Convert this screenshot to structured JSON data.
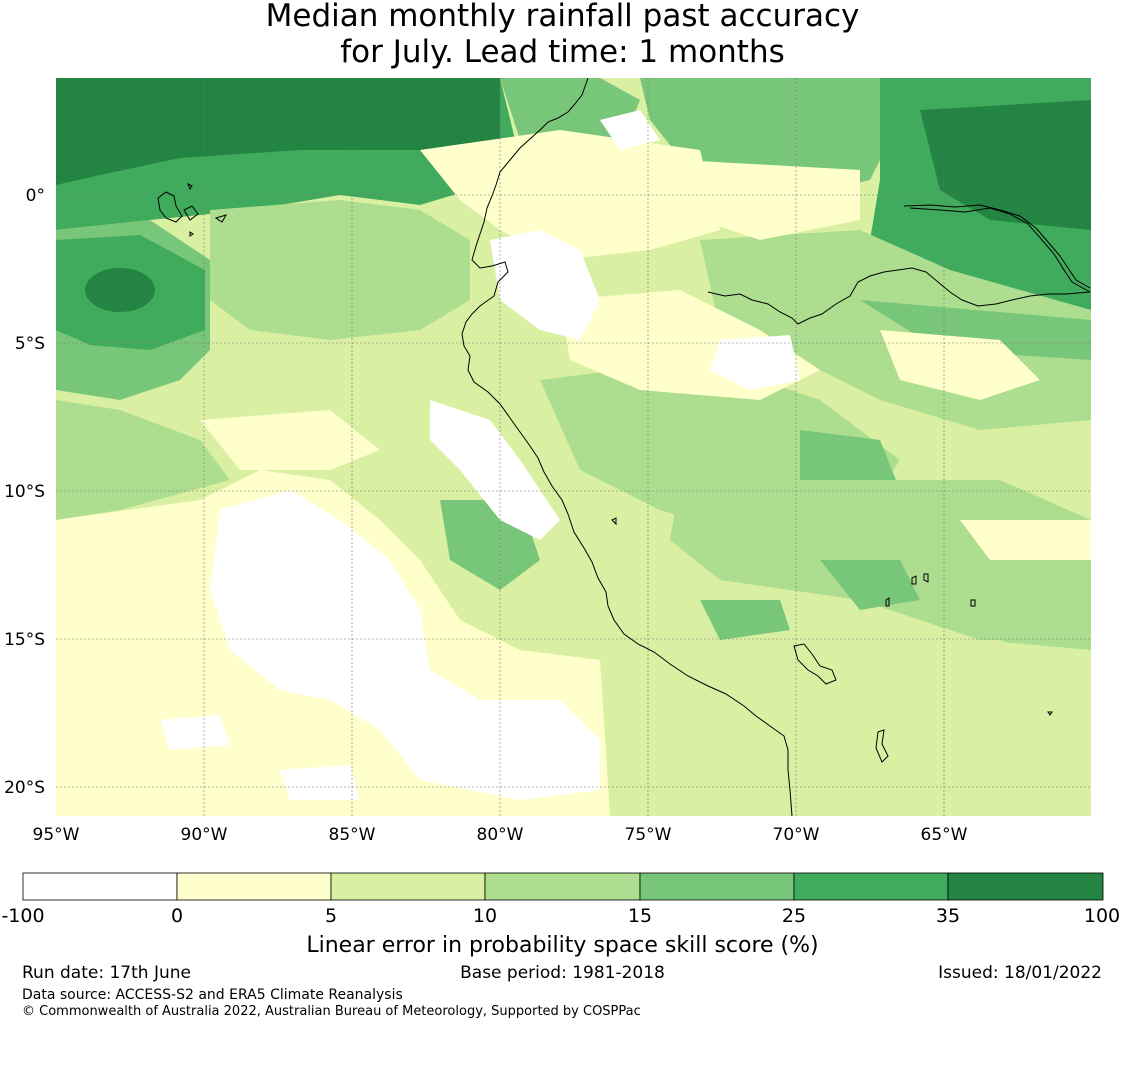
{
  "title": {
    "line1": "Median monthly rainfall past accuracy",
    "line2": "for July. Lead time: 1 months"
  },
  "map": {
    "lon_ticks": [
      "95°W",
      "90°W",
      "85°W",
      "80°W",
      "75°W",
      "70°W",
      "65°W"
    ],
    "lat_ticks": [
      "0°",
      "5°S",
      "10°S",
      "15°S",
      "20°S"
    ],
    "lon_range": [
      -95,
      -60
    ],
    "lat_range": [
      -21,
      4
    ],
    "gridlines": true
  },
  "colorbar": {
    "label": "Linear error in probability space skill score (%)",
    "ticks": [
      "-100",
      "0",
      "5",
      "10",
      "15",
      "25",
      "35",
      "100"
    ],
    "colors": [
      "#ffffff",
      "#ffffcc",
      "#d9f0a3",
      "#addd8e",
      "#78c679",
      "#41ab5d",
      "#238443"
    ]
  },
  "footer": {
    "run_date": "Run date: 17th June",
    "base_period": "Base period: 1981-2018",
    "issued": "Issued: 18/01/2022",
    "data_source": "Data source: ACCESS-S2 and ERA5 Climate Reanalysis",
    "copyright": "© Commonwealth of Australia 2022, Australian Bureau of Meteorology, Supported by COSPPac"
  }
}
